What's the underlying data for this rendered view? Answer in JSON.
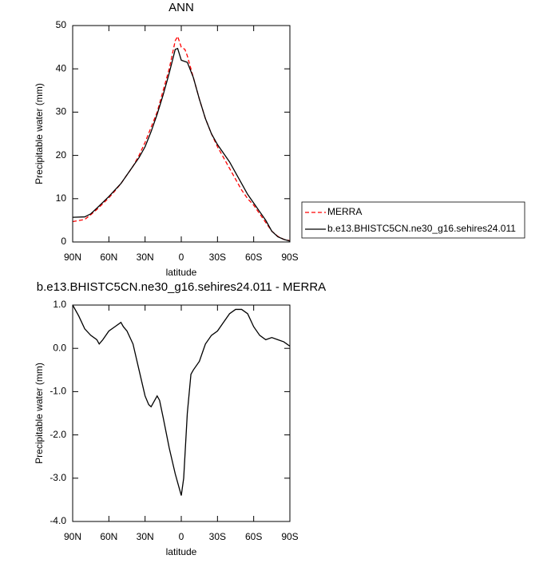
{
  "chart_data": [
    {
      "type": "line",
      "title": "ANN",
      "ylabel": "Precipitable water (mm)",
      "xlabel": "latitude",
      "xlim": [
        90,
        -90
      ],
      "xticks": [
        {
          "value": 90,
          "label": "90N"
        },
        {
          "value": 60,
          "label": "60N"
        },
        {
          "value": 30,
          "label": "30N"
        },
        0,
        {
          "value": -30,
          "label": "30S"
        },
        {
          "value": -60,
          "label": "60S"
        },
        {
          "value": -90,
          "label": "90S"
        }
      ],
      "ylim": [
        0,
        50
      ],
      "yticks": [
        0,
        10,
        20,
        30,
        40,
        50
      ],
      "legend": "right",
      "x": [
        90,
        80,
        75,
        70,
        60,
        55,
        50,
        45,
        40,
        35,
        30,
        25,
        20,
        15,
        10,
        5,
        3,
        0,
        -3,
        -5,
        -10,
        -15,
        -20,
        -25,
        -30,
        -35,
        -40,
        -45,
        -50,
        -55,
        -60,
        -65,
        -70,
        -75,
        -80,
        -85,
        -90
      ],
      "series": [
        {
          "name": "MERRA",
          "color": "#ff0000",
          "dash": true,
          "values": [
            4.7,
            5.2,
            6.3,
            7.5,
            10.2,
            11.8,
            13.5,
            15.5,
            17.5,
            20,
            23,
            26.5,
            30,
            35,
            40,
            46.5,
            47.5,
            45,
            44.5,
            43,
            38,
            33,
            28.5,
            25,
            22,
            19.5,
            17,
            14.5,
            12,
            10,
            8.5,
            6.5,
            4.5,
            2.5,
            1.3,
            0.6,
            0.3
          ]
        },
        {
          "name": "b.e13.BHISTC5CN.ne30_g16.sehires24.011",
          "color": "#000000",
          "dash": false,
          "values": [
            5.7,
            5.8,
            6.5,
            7.8,
            10.5,
            12,
            13.5,
            15.5,
            17.5,
            19.5,
            22,
            25.5,
            29.5,
            34,
            39,
            44.5,
            44.7,
            42,
            41.7,
            41.5,
            38,
            33,
            28.5,
            25,
            22.5,
            20.5,
            18.5,
            16,
            13.5,
            11,
            9,
            7,
            5,
            2.5,
            1.2,
            0.6,
            0.2
          ]
        }
      ]
    },
    {
      "type": "line",
      "title": "b.e13.BHISTC5CN.ne30_g16.sehires24.011 - MERRA",
      "ylabel": "Precipitable water (mm)",
      "xlabel": "latitude",
      "xlim": [
        90,
        -90
      ],
      "xticks": [
        {
          "value": 90,
          "label": "90N"
        },
        {
          "value": 60,
          "label": "60N"
        },
        {
          "value": 30,
          "label": "30N"
        },
        0,
        {
          "value": -30,
          "label": "30S"
        },
        {
          "value": -60,
          "label": "60S"
        },
        {
          "value": -90,
          "label": "90S"
        }
      ],
      "ylim": [
        -4,
        1
      ],
      "yticks": [
        {
          "value": -4,
          "label": "-4.0"
        },
        {
          "value": -3,
          "label": "-3.0"
        },
        {
          "value": -2,
          "label": "-2.0"
        },
        {
          "value": -1,
          "label": "-1.0"
        },
        {
          "value": 0,
          "label": "0.0"
        },
        {
          "value": 1,
          "label": "1.0"
        }
      ],
      "x": [
        90,
        85,
        80,
        75,
        70,
        68,
        65,
        60,
        55,
        50,
        48,
        45,
        40,
        35,
        30,
        27,
        25,
        22,
        20,
        18,
        15,
        10,
        5,
        2,
        0,
        -2,
        -5,
        -8,
        -10,
        -15,
        -20,
        -25,
        -30,
        -35,
        -40,
        -45,
        -50,
        -55,
        -60,
        -65,
        -70,
        -75,
        -80,
        -85,
        -90
      ],
      "series": [
        {
          "color": "#000000",
          "dash": false,
          "values": [
            1.0,
            0.75,
            0.45,
            0.3,
            0.2,
            0.1,
            0.2,
            0.4,
            0.5,
            0.6,
            0.5,
            0.4,
            0.1,
            -0.5,
            -1.1,
            -1.3,
            -1.35,
            -1.2,
            -1.1,
            -1.2,
            -1.6,
            -2.3,
            -2.9,
            -3.2,
            -3.4,
            -3.0,
            -1.5,
            -0.6,
            -0.5,
            -0.3,
            0.1,
            0.3,
            0.4,
            0.6,
            0.8,
            0.9,
            0.9,
            0.8,
            0.5,
            0.3,
            0.2,
            0.25,
            0.2,
            0.15,
            0.05
          ]
        }
      ]
    }
  ]
}
